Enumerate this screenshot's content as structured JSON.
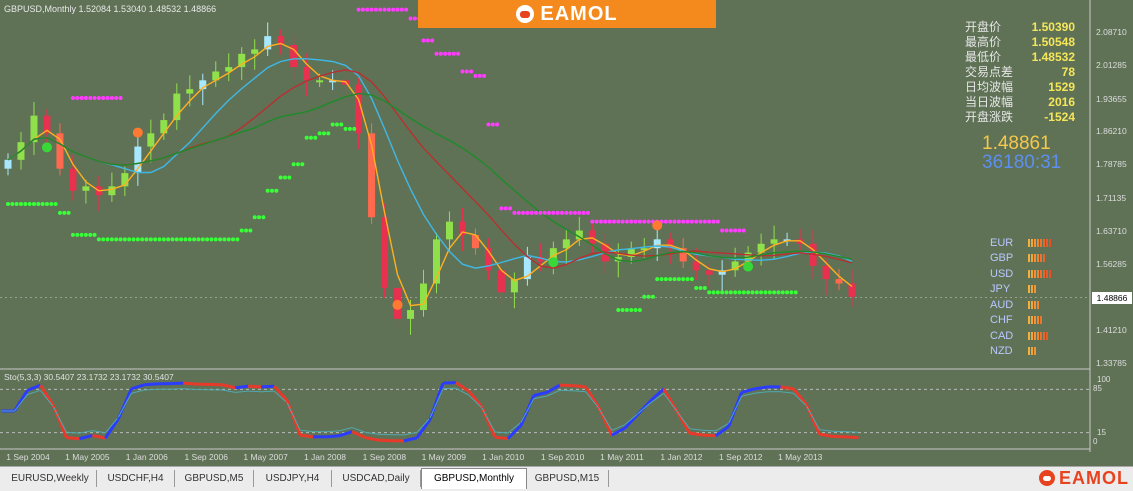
{
  "window": {
    "title": "GBPUSD,Monthly  1.52084 1.53040 1.48532 1.48866"
  },
  "brand": {
    "name": "EAMOL"
  },
  "info_panel": [
    {
      "label": "开盘价",
      "value": "1.50390"
    },
    {
      "label": "最高价",
      "value": "1.50548"
    },
    {
      "label": "最低价",
      "value": "1.48532"
    },
    {
      "label": "交易点差",
      "value": "78"
    },
    {
      "label": "日均波幅",
      "value": "1529"
    },
    {
      "label": "当日波幅",
      "value": "2016"
    },
    {
      "label": "开盘涨跌",
      "value": "-1524"
    }
  ],
  "current_price": "1.48861",
  "countdown": "36180:31",
  "currency_strength": [
    {
      "name": "EUR",
      "level": 8
    },
    {
      "name": "GBP",
      "level": 6
    },
    {
      "name": "USD",
      "level": 8
    },
    {
      "name": "JPY",
      "level": 3
    },
    {
      "name": "AUD",
      "level": 4
    },
    {
      "name": "CHF",
      "level": 5
    },
    {
      "name": "CAD",
      "level": 7
    },
    {
      "name": "NZD",
      "level": 3
    }
  ],
  "price_axis": {
    "ticks": [
      "2.08710",
      "2.01285",
      "1.93655",
      "1.86210",
      "1.78785",
      "1.71135",
      "1.63710",
      "1.56285",
      "1.48866",
      "1.41210",
      "1.33785"
    ],
    "current_tag": "1.48866"
  },
  "oscillator": {
    "title": "Sto(5,3,3) 30.5407 23.1732 23.1732 30.5407",
    "levels": [
      "100",
      "85",
      "15",
      "0"
    ]
  },
  "time_axis": {
    "labels": [
      "1 Sep 2004",
      "1 May 2005",
      "1 Jan 2006",
      "1 Sep 2006",
      "1 May 2007",
      "1 Jan 2008",
      "1 Sep 2008",
      "1 May 2009",
      "1 Jan 2010",
      "1 Sep 2010",
      "1 May 2011",
      "1 Jan 2012",
      "1 Sep 2012",
      "1 May 2013"
    ]
  },
  "tabs": [
    {
      "label": "EURUSD,Weekly",
      "active": false
    },
    {
      "label": "USDCHF,H4",
      "active": false
    },
    {
      "label": "GBPUSD,M5",
      "active": false
    },
    {
      "label": "USDJPY,H4",
      "active": false
    },
    {
      "label": "USDCAD,Daily",
      "active": false
    },
    {
      "label": "GBPUSD,Monthly",
      "active": true
    },
    {
      "label": "GBPUSD,M15",
      "active": false
    }
  ],
  "chart_data": {
    "type": "candlestick",
    "symbol": "GBPUSD",
    "timeframe": "Monthly",
    "ylim": [
      1.33785,
      2.0871
    ],
    "close_series": [
      1.8,
      1.84,
      1.9,
      1.86,
      1.78,
      1.73,
      1.74,
      1.72,
      1.74,
      1.77,
      1.83,
      1.86,
      1.89,
      1.95,
      1.96,
      1.98,
      2.0,
      2.01,
      2.04,
      2.05,
      2.08,
      2.06,
      2.01,
      1.98,
      1.98,
      1.98,
      1.97,
      1.86,
      1.67,
      1.51,
      1.44,
      1.46,
      1.52,
      1.62,
      1.66,
      1.63,
      1.6,
      1.55,
      1.5,
      1.53,
      1.58,
      1.57,
      1.6,
      1.62,
      1.64,
      1.61,
      1.57,
      1.58,
      1.6,
      1.6,
      1.62,
      1.6,
      1.57,
      1.55,
      1.54,
      1.55,
      1.57,
      1.59,
      1.61,
      1.62,
      1.62,
      1.61,
      1.56,
      1.53,
      1.52,
      1.49
    ]
  }
}
